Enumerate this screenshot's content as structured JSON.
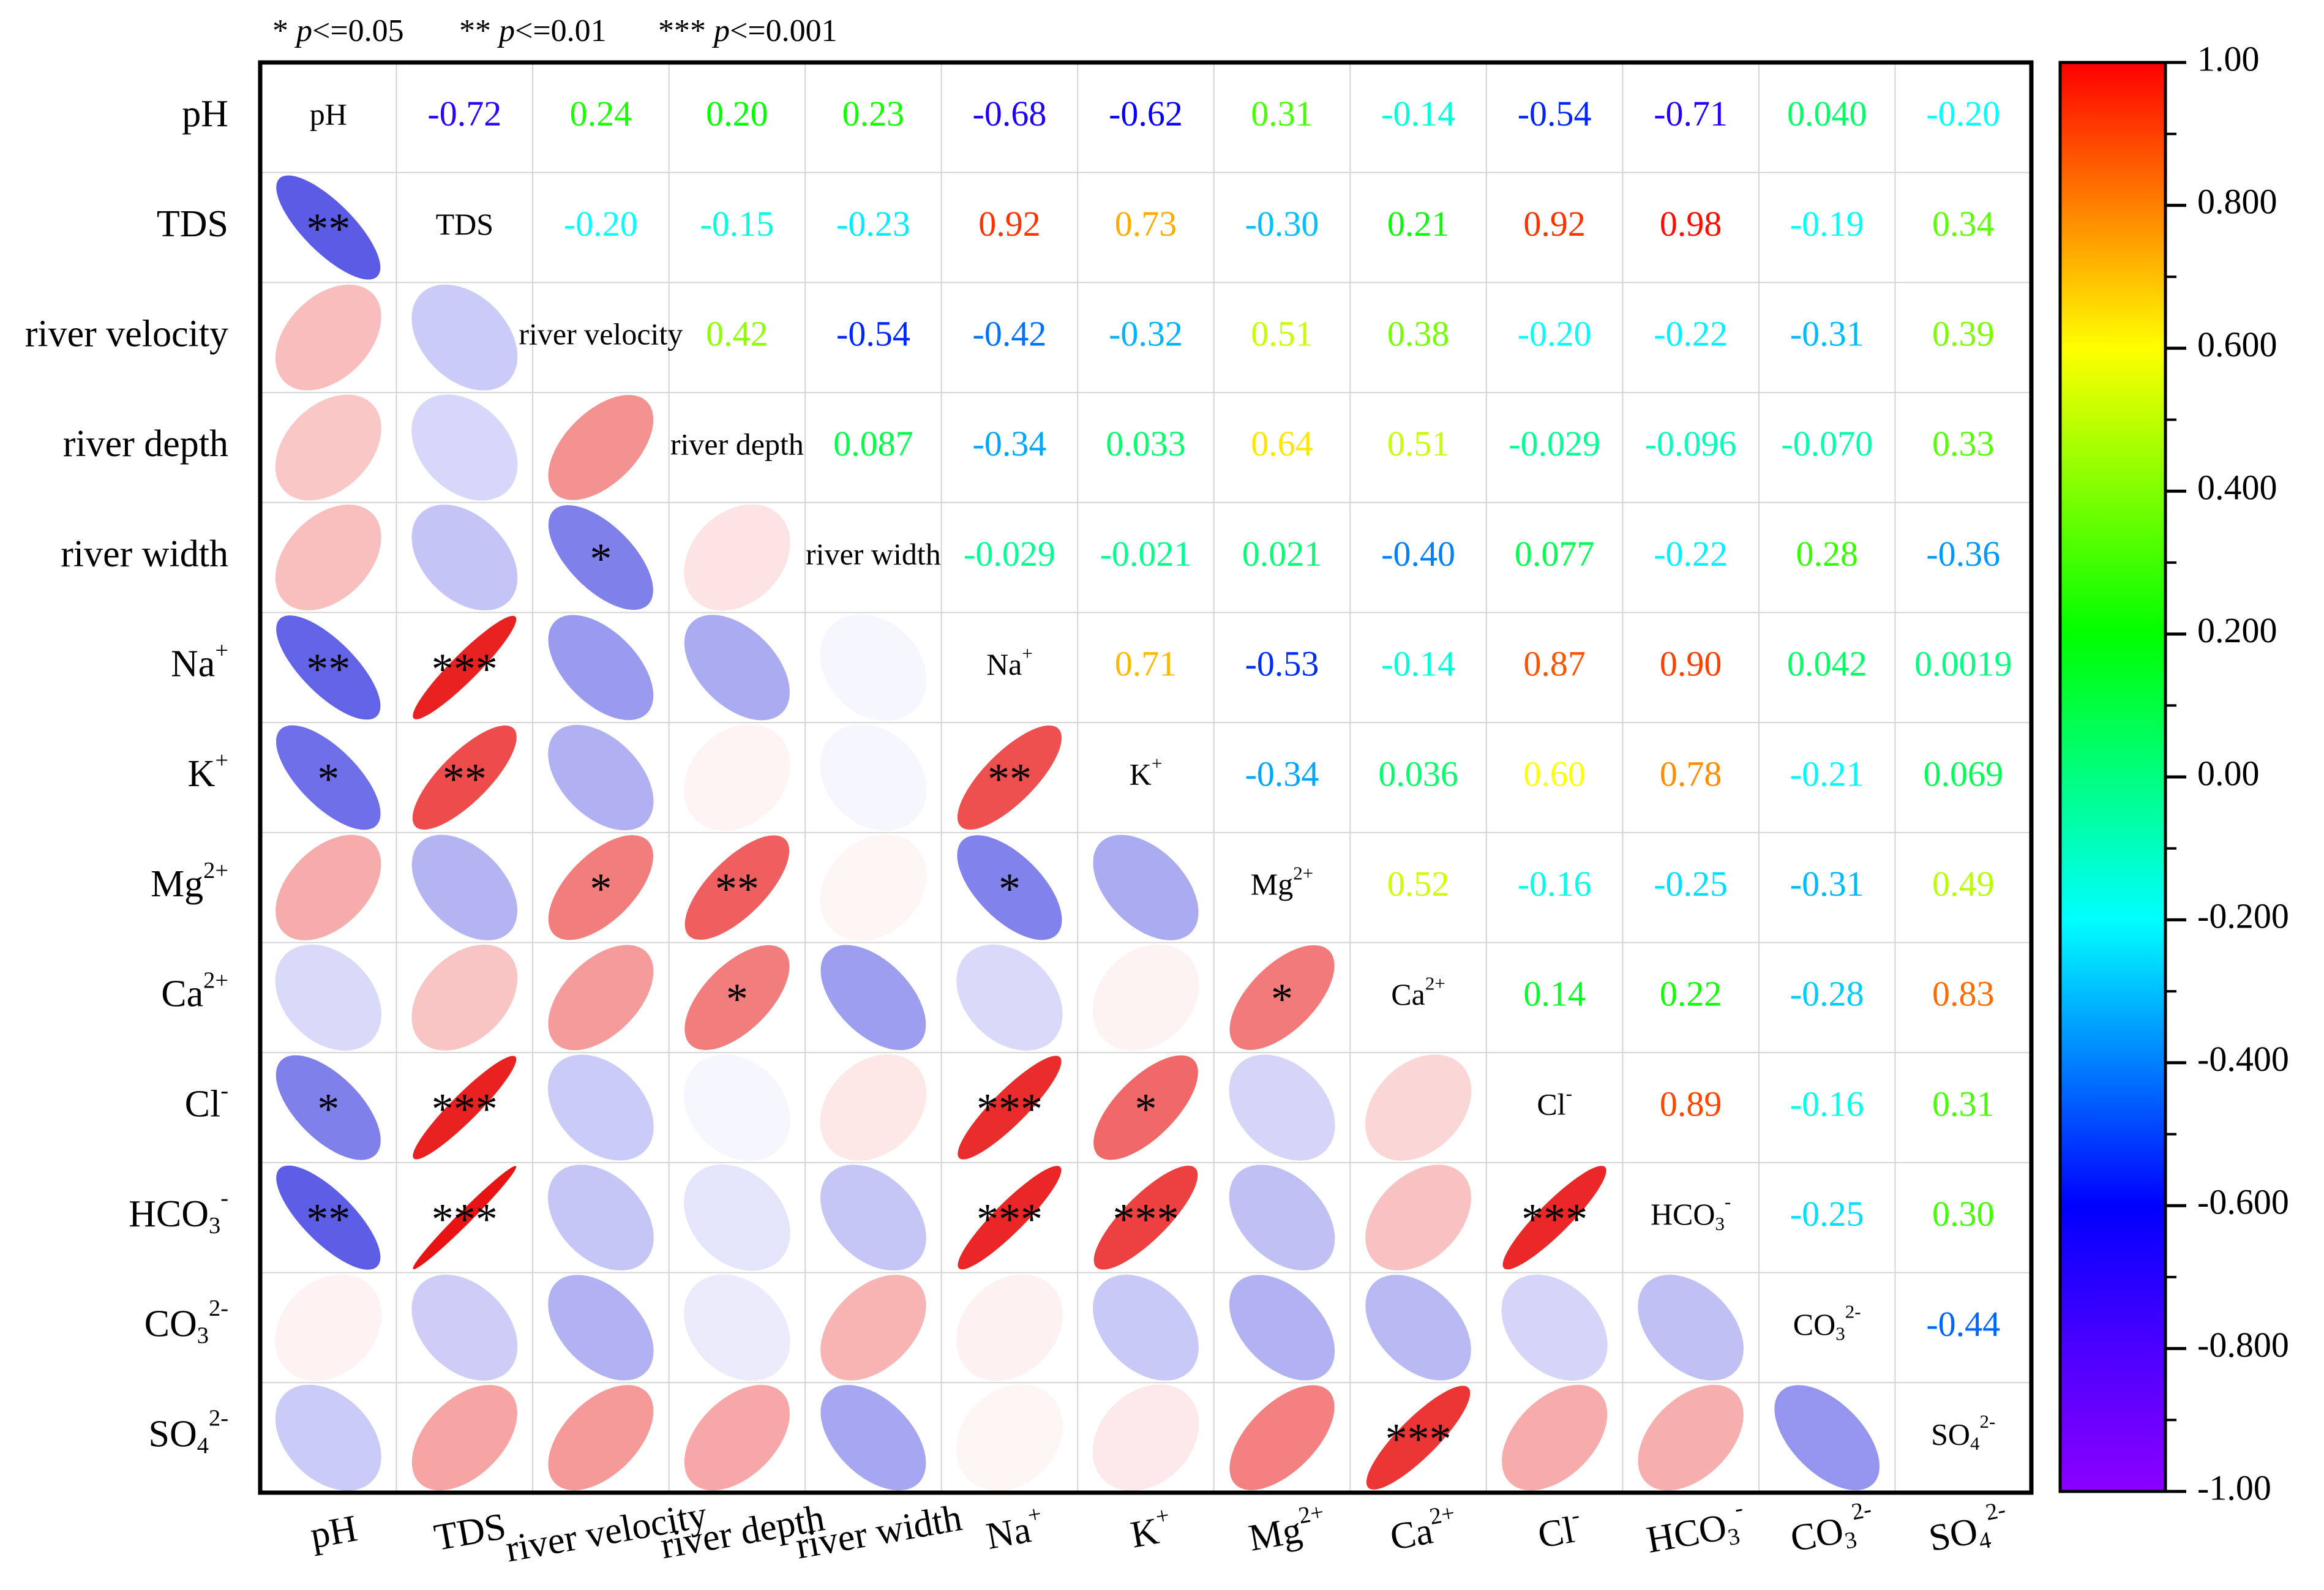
{
  "chart_data": {
    "type": "heatmap",
    "subtype": "correlation-matrix",
    "significance_legend": [
      {
        "stars": "*",
        "label": "p<=0.05"
      },
      {
        "stars": "**",
        "label": "p<=0.01"
      },
      {
        "stars": "***",
        "label": "p<=0.001"
      }
    ],
    "variables": [
      {
        "name": "pH",
        "sup": "",
        "sub": ""
      },
      {
        "name": "TDS",
        "sup": "",
        "sub": ""
      },
      {
        "name": "river velocity",
        "sup": "",
        "sub": ""
      },
      {
        "name": "river depth",
        "sup": "",
        "sub": ""
      },
      {
        "name": "river width",
        "sup": "",
        "sub": ""
      },
      {
        "name": "Na",
        "sup": "+",
        "sub": ""
      },
      {
        "name": "K",
        "sup": "+",
        "sub": ""
      },
      {
        "name": "Mg",
        "sup": "2+",
        "sub": ""
      },
      {
        "name": "Ca",
        "sup": "2+",
        "sub": ""
      },
      {
        "name": "Cl",
        "sup": "-",
        "sub": ""
      },
      {
        "name": "HCO",
        "sup": "-",
        "sub": "3"
      },
      {
        "name": "CO",
        "sup": "2-",
        "sub": "3"
      },
      {
        "name": "SO",
        "sup": "2-",
        "sub": "4"
      }
    ],
    "upper_labels": [
      [
        "",
        "-0.72",
        "0.24",
        "0.20",
        "0.23",
        "-0.68",
        "-0.62",
        "0.31",
        "-0.14",
        "-0.54",
        "-0.71",
        "0.040",
        "-0.20"
      ],
      [
        "",
        "",
        "-0.20",
        "-0.15",
        "-0.23",
        "0.92",
        "0.73",
        "-0.30",
        "0.21",
        "0.92",
        "0.98",
        "-0.19",
        "0.34"
      ],
      [
        "",
        "",
        "",
        "0.42",
        "-0.54",
        "-0.42",
        "-0.32",
        "0.51",
        "0.38",
        "-0.20",
        "-0.22",
        "-0.31",
        "0.39"
      ],
      [
        "",
        "",
        "",
        "",
        "0.087",
        "-0.34",
        "0.033",
        "0.64",
        "0.51",
        "-0.029",
        "-0.096",
        "-0.070",
        "0.33"
      ],
      [
        "",
        "",
        "",
        "",
        "",
        "-0.029",
        "-0.021",
        "0.021",
        "-0.40",
        "0.077",
        "-0.22",
        "0.28",
        "-0.36"
      ],
      [
        "",
        "",
        "",
        "",
        "",
        "",
        "0.71",
        "-0.53",
        "-0.14",
        "0.87",
        "0.90",
        "0.042",
        "0.0019"
      ],
      [
        "",
        "",
        "",
        "",
        "",
        "",
        "",
        "-0.34",
        "0.036",
        "0.60",
        "0.78",
        "-0.21",
        "0.069"
      ],
      [
        "",
        "",
        "",
        "",
        "",
        "",
        "",
        "",
        "0.52",
        "-0.16",
        "-0.25",
        "-0.31",
        "0.49"
      ],
      [
        "",
        "",
        "",
        "",
        "",
        "",
        "",
        "",
        "",
        "0.14",
        "0.22",
        "-0.28",
        "0.83"
      ],
      [
        "",
        "",
        "",
        "",
        "",
        "",
        "",
        "",
        "",
        "",
        "0.89",
        "-0.16",
        "0.31"
      ],
      [
        "",
        "",
        "",
        "",
        "",
        "",
        "",
        "",
        "",
        "",
        "",
        "-0.25",
        "0.30"
      ],
      [
        "",
        "",
        "",
        "",
        "",
        "",
        "",
        "",
        "",
        "",
        "",
        "",
        "-0.44"
      ],
      [
        "",
        "",
        "",
        "",
        "",
        "",
        "",
        "",
        "",
        "",
        "",
        "",
        ""
      ]
    ],
    "significance": [
      [
        "",
        "",
        "",
        "",
        "",
        "",
        "",
        "",
        "",
        "",
        "",
        "",
        ""
      ],
      [
        "**",
        "",
        "",
        "",
        "",
        "",
        "",
        "",
        "",
        "",
        "",
        "",
        ""
      ],
      [
        "",
        "",
        "",
        "",
        "",
        "",
        "",
        "",
        "",
        "",
        "",
        "",
        ""
      ],
      [
        "",
        "",
        "",
        "",
        "",
        "",
        "",
        "",
        "",
        "",
        "",
        "",
        ""
      ],
      [
        "",
        "",
        "*",
        "",
        "",
        "",
        "",
        "",
        "",
        "",
        "",
        "",
        ""
      ],
      [
        "**",
        "***",
        "",
        "",
        "",
        "",
        "",
        "",
        "",
        "",
        "",
        "",
        ""
      ],
      [
        "*",
        "**",
        "",
        "",
        "",
        "**",
        "",
        "",
        "",
        "",
        "",
        "",
        ""
      ],
      [
        "",
        "",
        "*",
        "**",
        "",
        "*",
        "",
        "",
        "",
        "",
        "",
        "",
        ""
      ],
      [
        "",
        "",
        "",
        "*",
        "",
        "",
        "",
        "*",
        "",
        "",
        "",
        "",
        ""
      ],
      [
        "*",
        "***",
        "",
        "",
        "",
        "***",
        "*",
        "",
        "",
        "",
        "",
        "",
        ""
      ],
      [
        "**",
        "***",
        "",
        "",
        "",
        "***",
        "***",
        "",
        "",
        "***",
        "",
        "",
        ""
      ],
      [
        "",
        "",
        "",
        "",
        "",
        "",
        "",
        "",
        "",
        "",
        "",
        "",
        ""
      ],
      [
        "",
        "",
        "",
        "",
        "",
        "",
        "",
        "",
        "***",
        "",
        "",
        "",
        ""
      ]
    ],
    "colorbar": {
      "min": -1.0,
      "max": 1.0,
      "ticks": [
        "1.00",
        "0.800",
        "0.600",
        "0.400",
        "0.200",
        "0.00",
        "-0.200",
        "-0.400",
        "-0.600",
        "-0.800",
        "-1.00"
      ],
      "colorscale": [
        "#8b00ff",
        "#4b00ff",
        "#0000ff",
        "#0080ff",
        "#00ffff",
        "#00ff80",
        "#00ff00",
        "#80ff00",
        "#ffff00",
        "#ff8000",
        "#ff0000"
      ],
      "ellipse_negative": "#2222dd",
      "ellipse_positive": "#e81010"
    }
  }
}
